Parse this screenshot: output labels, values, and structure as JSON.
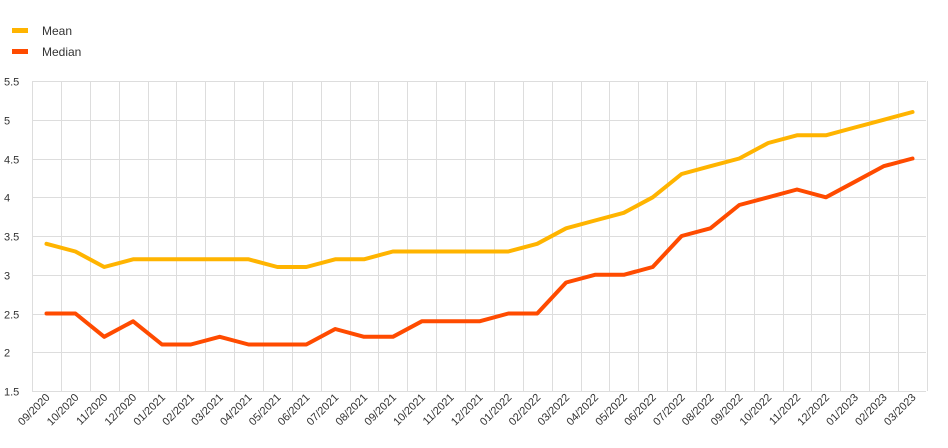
{
  "chart_data": {
    "type": "line",
    "title": "",
    "xlabel": "",
    "ylabel": "",
    "ylim": [
      1.5,
      5.5
    ],
    "yticks": [
      "1.5",
      "2",
      "2.5",
      "3",
      "3.5",
      "4",
      "4.5",
      "5",
      "5.5"
    ],
    "grid": true,
    "legend_position": "top-left",
    "categories": [
      "09/2020",
      "10/2020",
      "11/2020",
      "12/2020",
      "01/2021",
      "02/2021",
      "03/2021",
      "04/2021",
      "05/2021",
      "06/2021",
      "07/2021",
      "08/2021",
      "09/2021",
      "10/2021",
      "11/2021",
      "12/2021",
      "01/2022",
      "02/2022",
      "03/2022",
      "04/2022",
      "05/2022",
      "06/2022",
      "07/2022",
      "08/2022",
      "09/2022",
      "10/2022",
      "11/2022",
      "12/2022",
      "01/2023",
      "02/2023",
      "03/2023"
    ],
    "series": [
      {
        "name": "Mean",
        "color": "#FFB400",
        "values": [
          3.4,
          3.3,
          3.1,
          3.2,
          3.2,
          3.2,
          3.2,
          3.2,
          3.1,
          3.1,
          3.2,
          3.2,
          3.3,
          3.3,
          3.3,
          3.3,
          3.3,
          3.4,
          3.6,
          3.7,
          3.8,
          4.0,
          4.3,
          4.4,
          4.5,
          4.7,
          4.8,
          4.8,
          4.9,
          5.0,
          5.1
        ]
      },
      {
        "name": "Median",
        "color": "#FF4B00",
        "values": [
          2.5,
          2.5,
          2.2,
          2.4,
          2.1,
          2.1,
          2.2,
          2.1,
          2.1,
          2.1,
          2.3,
          2.2,
          2.2,
          2.4,
          2.4,
          2.4,
          2.5,
          2.5,
          2.9,
          3.0,
          3.0,
          3.1,
          3.5,
          3.6,
          3.9,
          4.0,
          4.1,
          4.0,
          4.2,
          4.4,
          4.5
        ]
      }
    ]
  }
}
